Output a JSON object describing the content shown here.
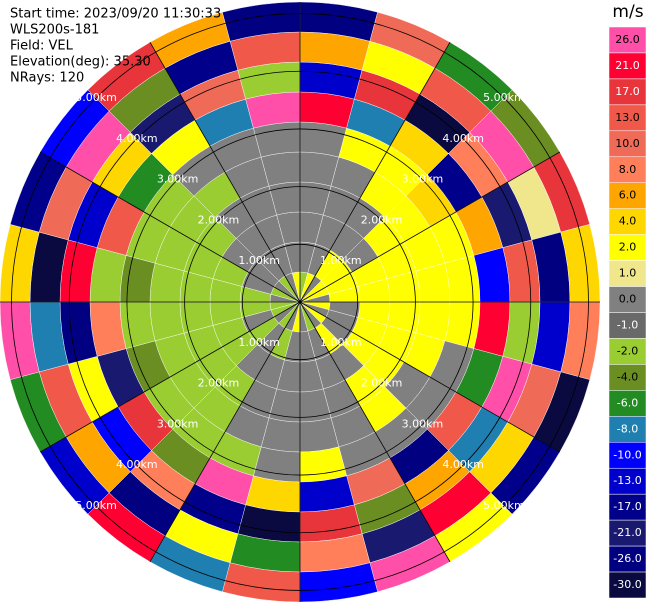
{
  "chart_data": {
    "type": "ppi",
    "header": [
      "Start time: 2023/09/20 11:30:33",
      "WLS200s-181",
      "Field: VEL",
      "Elevation(deg): 35.30",
      "NRays: 120"
    ],
    "colorbar_title": "m/s",
    "rlim": [
      0,
      5.2
    ],
    "range_rings": [
      {
        "value": 1,
        "label": "1.00km"
      },
      {
        "value": 2,
        "label": "2.00km"
      },
      {
        "value": 3,
        "label": "3.00km"
      },
      {
        "value": 4,
        "label": "4.00km"
      },
      {
        "value": 5,
        "label": "5.00km"
      }
    ],
    "levels": [
      {
        "value": 26,
        "label": "26.0",
        "color": "#ff4fa8"
      },
      {
        "value": 21,
        "label": "21.0",
        "color": "#ff0033"
      },
      {
        "value": 17,
        "label": "17.0",
        "color": "#e8353b"
      },
      {
        "value": 13,
        "label": "13.0",
        "color": "#f0584a"
      },
      {
        "value": 10,
        "label": "10.0",
        "color": "#f06a58"
      },
      {
        "value": 8,
        "label": "8.0",
        "color": "#ff7f5a"
      },
      {
        "value": 6,
        "label": "6.0",
        "color": "#ffa500"
      },
      {
        "value": 4,
        "label": "4.0",
        "color": "#ffd700"
      },
      {
        "value": 2,
        "label": "2.0",
        "color": "#ffff00"
      },
      {
        "value": 1,
        "label": "1.0",
        "color": "#f0e68c"
      },
      {
        "value": 0,
        "label": "0.0",
        "color": "#808080"
      },
      {
        "value": -1,
        "label": "-1.0",
        "color": "#696969"
      },
      {
        "value": -2,
        "label": "-2.0",
        "color": "#9acd32"
      },
      {
        "value": -4,
        "label": "-4.0",
        "color": "#6b8e23"
      },
      {
        "value": -6,
        "label": "-6.0",
        "color": "#228b22"
      },
      {
        "value": -8,
        "label": "-8.0",
        "color": "#1e7fb0"
      },
      {
        "value": -10,
        "label": "-10.0",
        "color": "#0000ff"
      },
      {
        "value": -13,
        "label": "-13.0",
        "color": "#0000cd"
      },
      {
        "value": -17,
        "label": "-17.0",
        "color": "#00008b"
      },
      {
        "value": -21,
        "label": "-21.0",
        "color": "#191970"
      },
      {
        "value": -26,
        "label": "-26.0",
        "color": "#000080"
      },
      {
        "value": -30,
        "label": "-30.0",
        "color": "#0a0a40"
      }
    ],
    "field": [
      [
        -2,
        0,
        0,
        0,
        0,
        0,
        21,
        -13,
        6,
        -26
      ],
      [
        2,
        0,
        0,
        0,
        0,
        2,
        -8,
        17,
        2,
        10
      ],
      [
        0,
        2,
        0,
        0,
        2,
        2,
        4,
        -30,
        13,
        -6
      ],
      [
        2,
        2,
        0,
        2,
        2,
        4,
        -17,
        8,
        26,
        -4
      ],
      [
        2,
        2,
        2,
        2,
        2,
        2,
        6,
        -21,
        1,
        17
      ],
      [
        0,
        2,
        2,
        2,
        2,
        2,
        -10,
        13,
        -26,
        4
      ],
      [
        2,
        0,
        2,
        2,
        2,
        2,
        21,
        -2,
        -13,
        8
      ],
      [
        0,
        0,
        2,
        2,
        2,
        0,
        -6,
        26,
        10,
        -30
      ],
      [
        2,
        0,
        2,
        2,
        0,
        0,
        13,
        -8,
        4,
        -17
      ],
      [
        0,
        2,
        0,
        2,
        2,
        0,
        -26,
        6,
        21,
        2
      ],
      [
        -2,
        0,
        0,
        0,
        0,
        0,
        10,
        -4,
        -21,
        26
      ],
      [
        0,
        0,
        0,
        0,
        0,
        2,
        -13,
        17,
        8,
        -10
      ],
      [
        2,
        0,
        0,
        0,
        0,
        0,
        4,
        -30,
        -6,
        13
      ],
      [
        0,
        -2,
        0,
        0,
        0,
        -2,
        26,
        -17,
        2,
        -8
      ],
      [
        -2,
        0,
        0,
        -2,
        -2,
        -2,
        -4,
        8,
        -26,
        21
      ],
      [
        0,
        -2,
        -2,
        -2,
        -2,
        -2,
        17,
        -10,
        6,
        -13
      ],
      [
        -2,
        0,
        -2,
        -2,
        -2,
        -4,
        -21,
        2,
        13,
        -6
      ],
      [
        -2,
        -2,
        -2,
        -2,
        -2,
        -2,
        8,
        -26,
        -8,
        26
      ],
      [
        0,
        -2,
        -2,
        -2,
        -2,
        -4,
        -2,
        21,
        -30,
        4
      ],
      [
        -2,
        0,
        -2,
        -2,
        -2,
        -2,
        13,
        -13,
        10,
        -17
      ],
      [
        0,
        0,
        0,
        -2,
        -2,
        -2,
        -6,
        4,
        26,
        -10
      ],
      [
        -2,
        0,
        0,
        0,
        -2,
        0,
        2,
        -21,
        -4,
        17
      ],
      [
        0,
        0,
        0,
        0,
        0,
        0,
        -8,
        10,
        -17,
        6
      ],
      [
        2,
        0,
        0,
        0,
        0,
        0,
        26,
        -2,
        13,
        -26
      ]
    ]
  }
}
